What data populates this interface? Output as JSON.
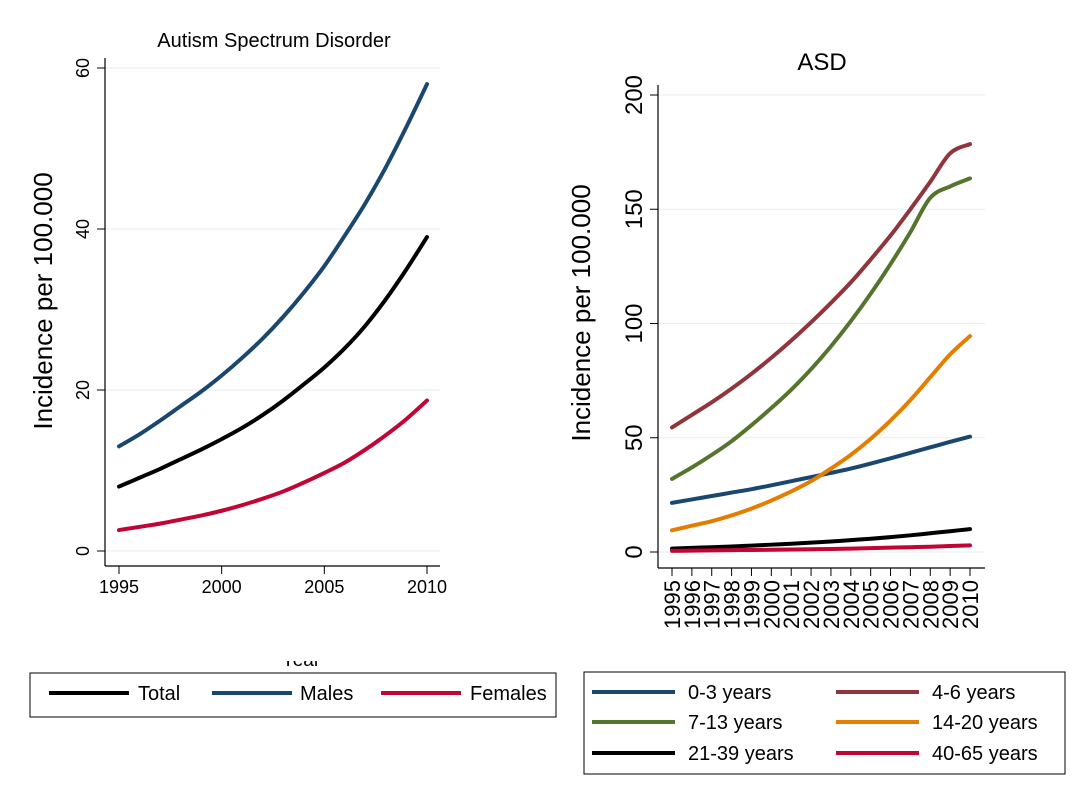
{
  "chart_data": [
    {
      "type": "line",
      "title": "Autism Spectrum Disorder",
      "xlabel": "Year",
      "ylabel": "Incidence per 100.000",
      "xlim": [
        1995,
        2010
      ],
      "ylim": [
        0,
        60
      ],
      "x_ticks": [
        "1995",
        "2000",
        "2005",
        "2010"
      ],
      "y_ticks": [
        "0",
        "20",
        "40",
        "60"
      ],
      "grid": true,
      "legend_position": "bottom",
      "x": [
        1995,
        1996,
        1997,
        1998,
        1999,
        2000,
        2001,
        2002,
        2003,
        2004,
        2005,
        2006,
        2007,
        2008,
        2009,
        2010
      ],
      "series": [
        {
          "name": "Total",
          "color": "#000000",
          "values": [
            8.0,
            9.1,
            10.2,
            11.4,
            12.6,
            13.9,
            15.3,
            16.9,
            18.7,
            20.7,
            22.8,
            25.2,
            28.0,
            31.3,
            35.0,
            39.0
          ]
        },
        {
          "name": "Males",
          "color": "#1a476f",
          "values": [
            13.0,
            14.5,
            16.2,
            18.0,
            19.8,
            21.8,
            24.0,
            26.4,
            29.1,
            32.1,
            35.4,
            39.2,
            43.2,
            47.7,
            52.7,
            58.0
          ]
        },
        {
          "name": "Females",
          "color": "#c10534",
          "values": [
            2.6,
            3.0,
            3.4,
            3.9,
            4.4,
            5.0,
            5.7,
            6.5,
            7.4,
            8.5,
            9.7,
            11.0,
            12.6,
            14.4,
            16.4,
            18.7
          ]
        }
      ]
    },
    {
      "type": "line",
      "title": "ASD",
      "xlabel": "",
      "ylabel": "Incidence per 100.000",
      "xlim": [
        1995,
        2010
      ],
      "ylim": [
        0,
        200
      ],
      "x_ticks": [
        "1995",
        "1996",
        "1997",
        "1998",
        "1999",
        "2000",
        "2001",
        "2002",
        "2003",
        "2004",
        "2005",
        "2006",
        "2007",
        "2008",
        "2009",
        "2010"
      ],
      "y_ticks": [
        "0",
        "50",
        "100",
        "150",
        "200"
      ],
      "grid": true,
      "legend_position": "bottom",
      "x": [
        1995,
        1996,
        1997,
        1998,
        1999,
        2000,
        2001,
        2002,
        2003,
        2004,
        2005,
        2006,
        2007,
        2008,
        2009,
        2010
      ],
      "series": [
        {
          "name": "0-3 years",
          "color": "#1a476f",
          "values": [
            21.5,
            23.0,
            24.5,
            26.0,
            27.5,
            29.2,
            31.0,
            32.8,
            34.6,
            36.5,
            38.7,
            41.0,
            43.4,
            45.8,
            48.2,
            50.5
          ]
        },
        {
          "name": "4-6 years",
          "color": "#90353b",
          "values": [
            54.5,
            60.0,
            65.5,
            71.5,
            78.0,
            85.0,
            92.5,
            100.5,
            109.0,
            118.0,
            128.0,
            138.5,
            150.0,
            162.0,
            174.5,
            178.5
          ]
        },
        {
          "name": "7-13 years",
          "color": "#55752f",
          "values": [
            32.0,
            37.0,
            42.5,
            48.5,
            55.5,
            63.0,
            71.0,
            80.0,
            90.0,
            101.0,
            113.0,
            126.0,
            140.0,
            155.0,
            160.0,
            163.5
          ]
        },
        {
          "name": "14-20 years",
          "color": "#e37e00",
          "values": [
            9.5,
            11.5,
            13.5,
            16.0,
            19.0,
            22.5,
            26.5,
            31.0,
            36.5,
            42.5,
            49.5,
            57.5,
            66.5,
            76.5,
            86.5,
            94.5
          ]
        },
        {
          "name": "21-39 years",
          "color": "#000000",
          "values": [
            1.5,
            1.8,
            2.1,
            2.4,
            2.8,
            3.2,
            3.6,
            4.1,
            4.6,
            5.2,
            5.8,
            6.5,
            7.3,
            8.2,
            9.1,
            10.0
          ]
        },
        {
          "name": "40-65 years",
          "color": "#c10534",
          "values": [
            0.5,
            0.6,
            0.7,
            0.8,
            0.9,
            1.0,
            1.1,
            1.2,
            1.3,
            1.5,
            1.7,
            1.9,
            2.1,
            2.3,
            2.6,
            2.9
          ]
        }
      ]
    }
  ]
}
